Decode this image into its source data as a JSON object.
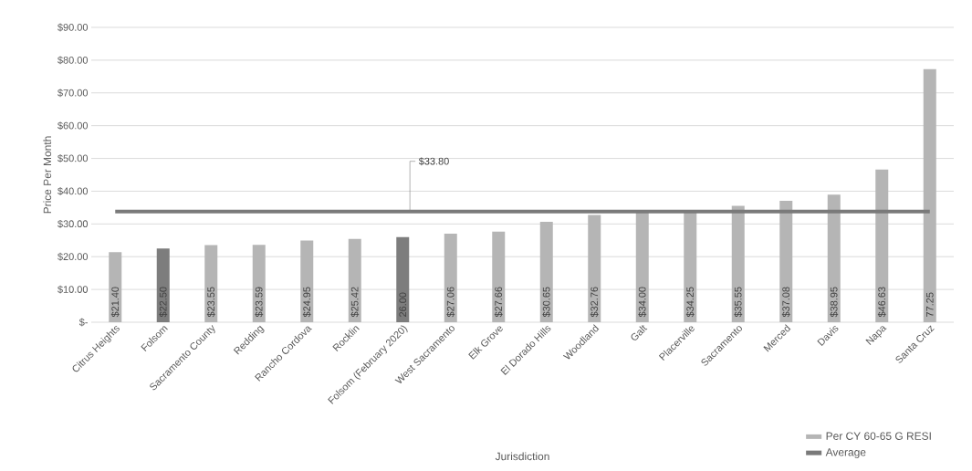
{
  "chart_data": {
    "type": "bar",
    "xlabel": "Jurisdiction",
    "ylabel": "Price Per Month",
    "categories": [
      "Citrus Heights",
      "Folsom",
      "Sacramento County",
      "Redding",
      "Rancho Cordova",
      "Rocklin",
      "Folsom (February 2020)",
      "West Sacramento",
      "Elk Grove",
      "El Dorado Hills",
      "Woodland",
      "Galt",
      "Placerville",
      "Sacramento",
      "Merced",
      "Davis",
      "Napa",
      "Santa Cruz"
    ],
    "series": [
      {
        "name": "Per CY 60-65 G RESI",
        "color": "#b5b5b5",
        "colors": [
          "#b5b5b5",
          "#7d7d7d",
          "#b5b5b5",
          "#b5b5b5",
          "#b5b5b5",
          "#b5b5b5",
          "#7d7d7d",
          "#b5b5b5",
          "#b5b5b5",
          "#b5b5b5",
          "#b5b5b5",
          "#b5b5b5",
          "#b5b5b5",
          "#b5b5b5",
          "#b5b5b5",
          "#b5b5b5",
          "#b5b5b5",
          "#b5b5b5"
        ],
        "values": [
          21.4,
          22.5,
          23.55,
          23.59,
          24.95,
          25.42,
          26.0,
          27.06,
          27.66,
          30.65,
          32.76,
          34.0,
          34.25,
          35.55,
          37.08,
          38.95,
          46.63,
          77.25
        ],
        "value_labels": [
          "$21.40",
          "$22.50",
          "$23.55",
          "$23.59",
          "$24.95",
          "$25.42",
          "26.00",
          "$27.06",
          "$27.66",
          "$30.65",
          "$32.76",
          "$34.00",
          "$34.25",
          "$35.55",
          "$37.08",
          "$38.95",
          "$46.63",
          "77.25"
        ]
      },
      {
        "name": "Average",
        "type": "line",
        "color": "#7a7a7a",
        "values": [
          33.8,
          33.8,
          33.8,
          33.8,
          33.8,
          33.8,
          33.8,
          33.8,
          33.8,
          33.8,
          33.8,
          33.8,
          33.8,
          33.8,
          33.8,
          33.8,
          33.8,
          33.8
        ]
      }
    ],
    "annotations": [
      {
        "text": "$33.80",
        "x": "Folsom (February 2020)",
        "y": 33.8
      }
    ],
    "ylim": [
      0,
      90
    ],
    "yticks": [
      {
        "value": 0,
        "label": "$-"
      },
      {
        "value": 10,
        "label": "$10.00"
      },
      {
        "value": 20,
        "label": "$20.00"
      },
      {
        "value": 30,
        "label": "$30.00"
      },
      {
        "value": 40,
        "label": "$40.00"
      },
      {
        "value": 50,
        "label": "$50.00"
      },
      {
        "value": 60,
        "label": "$60.00"
      },
      {
        "value": 70,
        "label": "$70.00"
      },
      {
        "value": 80,
        "label": "$80.00"
      },
      {
        "value": 90,
        "label": "$90.00"
      }
    ],
    "grid": "y",
    "legend": "bottom right"
  }
}
